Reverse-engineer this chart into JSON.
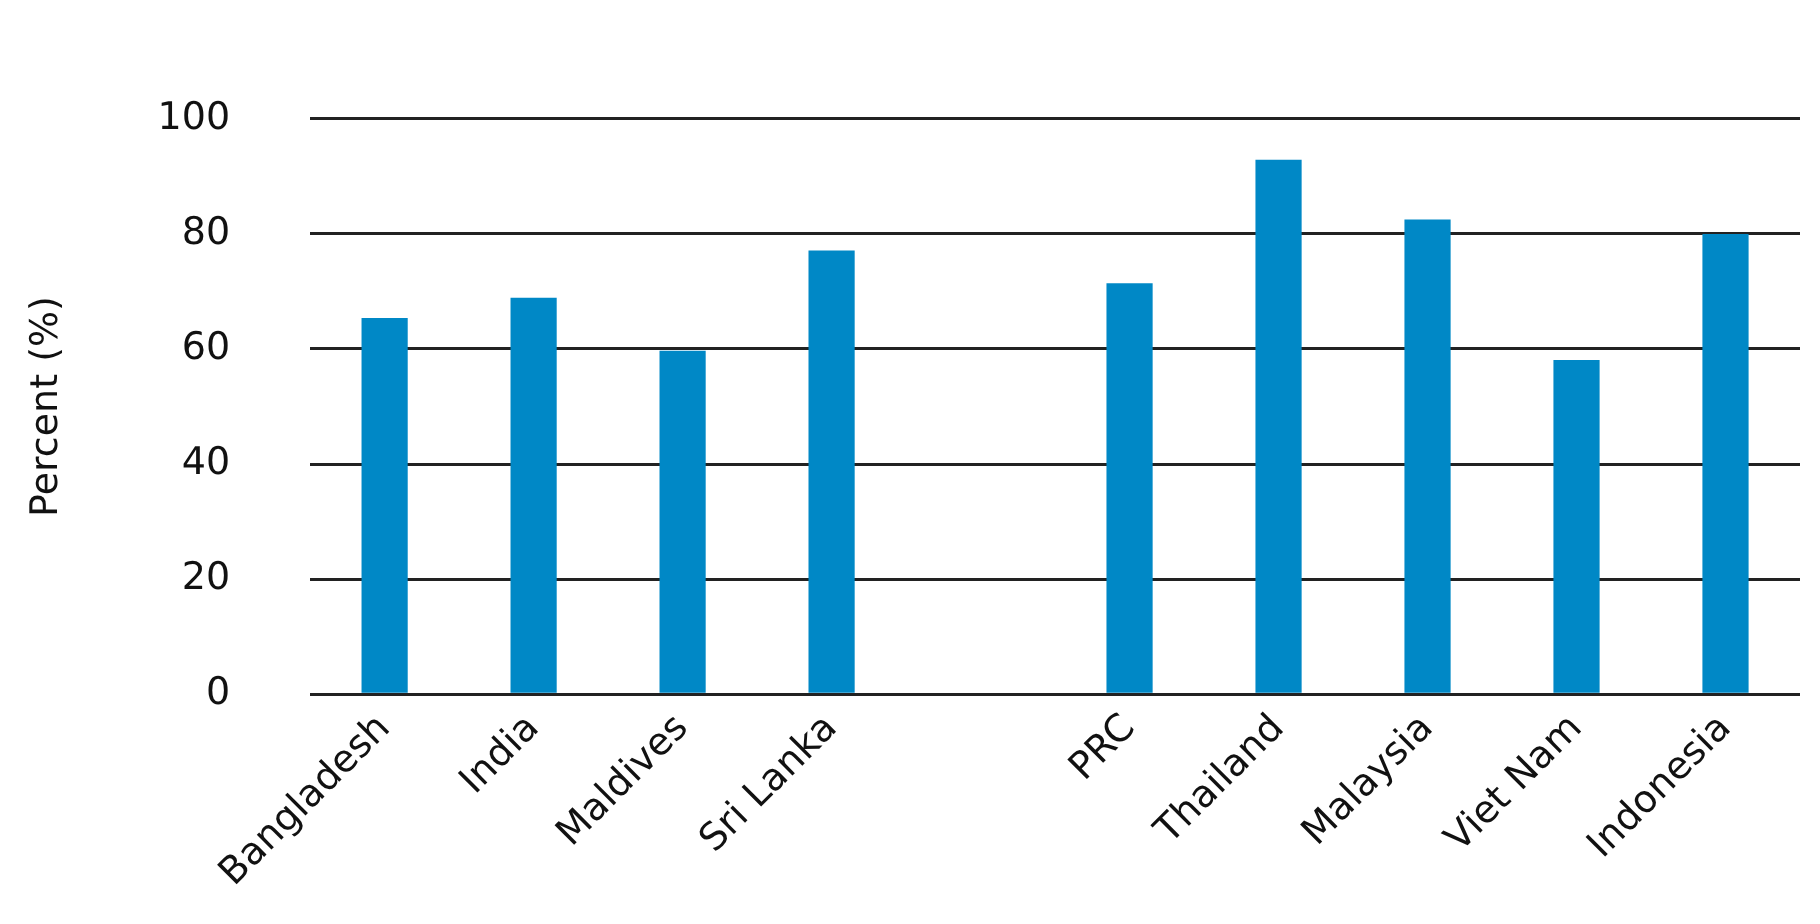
{
  "chart_data": {
    "type": "bar",
    "ylabel": "Percent (%)",
    "categories": [
      "Bangladesh",
      "India",
      "Maldives",
      "Sri Lanka",
      null,
      "PRC",
      "Thailand",
      "Malaysia",
      "Viet Nam",
      "Indonesia"
    ],
    "values": [
      65.4,
      68.9,
      59.7,
      77.1,
      null,
      71.4,
      92.9,
      82.5,
      58.1,
      80.0
    ],
    "color": "#0088c6",
    "ylim": [
      0,
      100
    ],
    "yticks": [
      0,
      20,
      40,
      60,
      80,
      100
    ],
    "grid": "y",
    "legend": false
  }
}
